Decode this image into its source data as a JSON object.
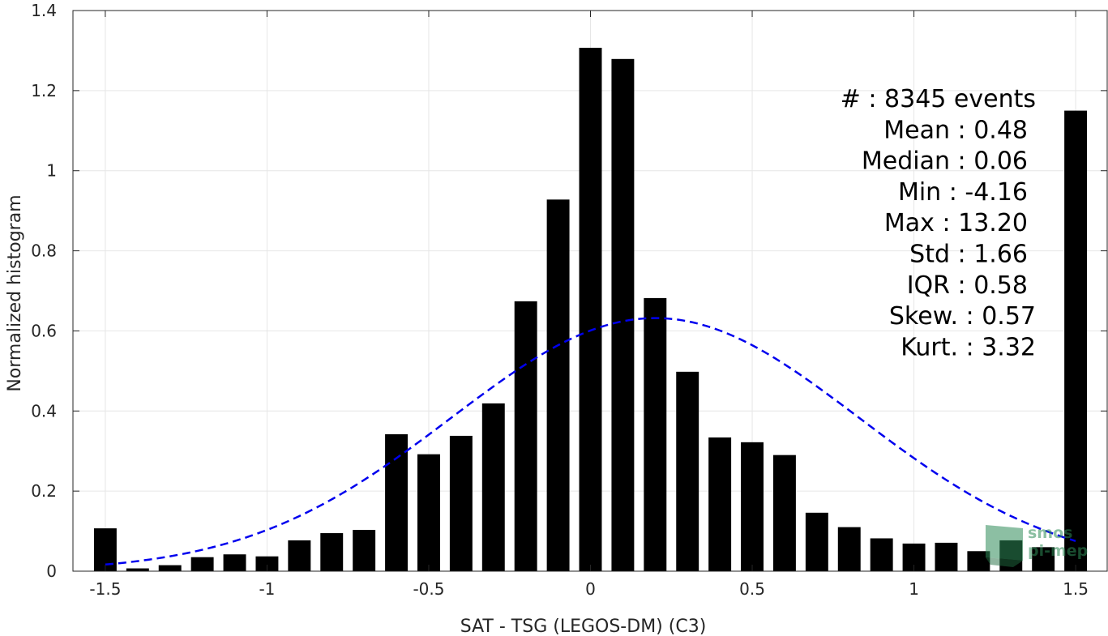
{
  "chart_data": {
    "type": "bar",
    "xlabel": "SAT - TSG (LEGOS-DM) (C3)",
    "ylabel": "Normalized histogram",
    "xlim": [
      -1.6,
      1.6
    ],
    "ylim": [
      0,
      1.4
    ],
    "xticks": [
      -1.5,
      -1,
      -0.5,
      0,
      0.5,
      1,
      1.5
    ],
    "xtick_labels": [
      "-1.5",
      "-1",
      "-0.5",
      "0",
      "0.5",
      "1",
      "1.5"
    ],
    "yticks": [
      0,
      0.2,
      0.4,
      0.6,
      0.8,
      1,
      1.2,
      1.4
    ],
    "ytick_labels": [
      "0",
      "0.2",
      "0.4",
      "0.6",
      "0.8",
      "1",
      "1.2",
      "1.4"
    ],
    "grid": true,
    "bin_width": 0.1,
    "x": [
      -1.5,
      -1.4,
      -1.3,
      -1.2,
      -1.1,
      -1.0,
      -0.9,
      -0.8,
      -0.7,
      -0.6,
      -0.5,
      -0.4,
      -0.3,
      -0.2,
      -0.1,
      0.0,
      0.1,
      0.2,
      0.3,
      0.4,
      0.5,
      0.6,
      0.7,
      0.8,
      0.9,
      1.0,
      1.1,
      1.2,
      1.3,
      1.4,
      1.5
    ],
    "values": [
      0.107,
      0.007,
      0.015,
      0.035,
      0.042,
      0.037,
      0.077,
      0.095,
      0.103,
      0.342,
      0.292,
      0.338,
      0.419,
      0.674,
      0.928,
      1.307,
      1.279,
      0.682,
      0.498,
      0.334,
      0.322,
      0.29,
      0.146,
      0.11,
      0.082,
      0.069,
      0.071,
      0.05,
      0.077,
      0.06,
      1.15
    ],
    "bar_color": "#000000",
    "fit_curve": {
      "style": "dashed",
      "color": "#0000ee",
      "x_range": [
        -1.5,
        1.5
      ],
      "mean": 0.2,
      "std": 0.63,
      "peak": 0.632
    },
    "stats": [
      {
        "label": "#  : 8345 events"
      },
      {
        "label": "Mean : 0.48"
      },
      {
        "label": "Median : 0.06"
      },
      {
        "label": "Min : -4.16"
      },
      {
        "label": "Max : 13.20"
      },
      {
        "label": "Std : 1.66"
      },
      {
        "label": "IQR : 0.58"
      },
      {
        "label": "Skew. : 0.57"
      },
      {
        "label": "Kurt. : 3.32"
      }
    ],
    "watermark": {
      "line1": "smos",
      "line2": "pi-mep"
    }
  }
}
